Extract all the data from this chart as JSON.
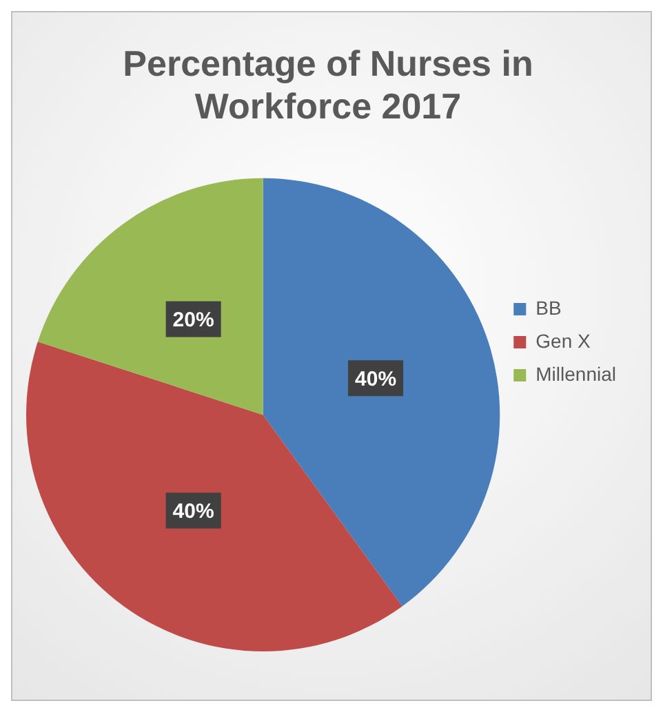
{
  "chart_data": {
    "type": "pie",
    "title": "Percentage of Nurses in Workforce 2017",
    "categories": [
      "BB",
      "Gen X",
      "Millennial"
    ],
    "values": [
      40,
      40,
      20
    ],
    "colors": [
      "#4a7ebb",
      "#be4b48",
      "#98b954"
    ],
    "value_labels": [
      "40%",
      "40%",
      "20%"
    ],
    "legend": "right"
  }
}
